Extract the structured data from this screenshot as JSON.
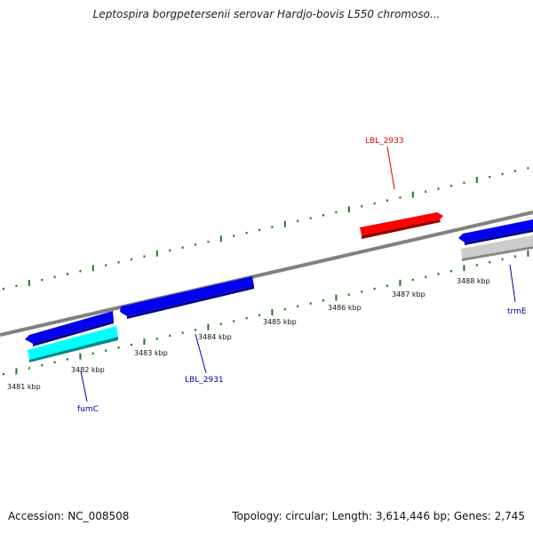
{
  "title": "Leptospira borgpetersenii serovar Hardjo-bovis L550 chromoso...",
  "footer": {
    "accession": "Accession: NC_008508",
    "summary": "Topology: circular; Length: 3,614,446 bp; Genes: 2,745"
  },
  "colors": {
    "backbone": "#7f7f7f",
    "tick": "#1a7a1a",
    "forward_gene": "#ff0000",
    "reverse_gene": "#0000ee",
    "fumC_gene": "#00e0e0",
    "rna_gene": "#c8c8c8",
    "label_blue": "#0000aa",
    "label_red": "#dd0000"
  },
  "scale_labels": [
    "3481 kbp",
    "3482 kbp",
    "3483 kbp",
    "3484 kbp",
    "3485 kbp",
    "3486 kbp",
    "3487 kbp",
    "3488 kbp"
  ],
  "gene_labels": {
    "lbl2933": "LBL_2933",
    "lbl2931": "LBL_2931",
    "fumC": "fumC",
    "trmE": "trmE"
  }
}
